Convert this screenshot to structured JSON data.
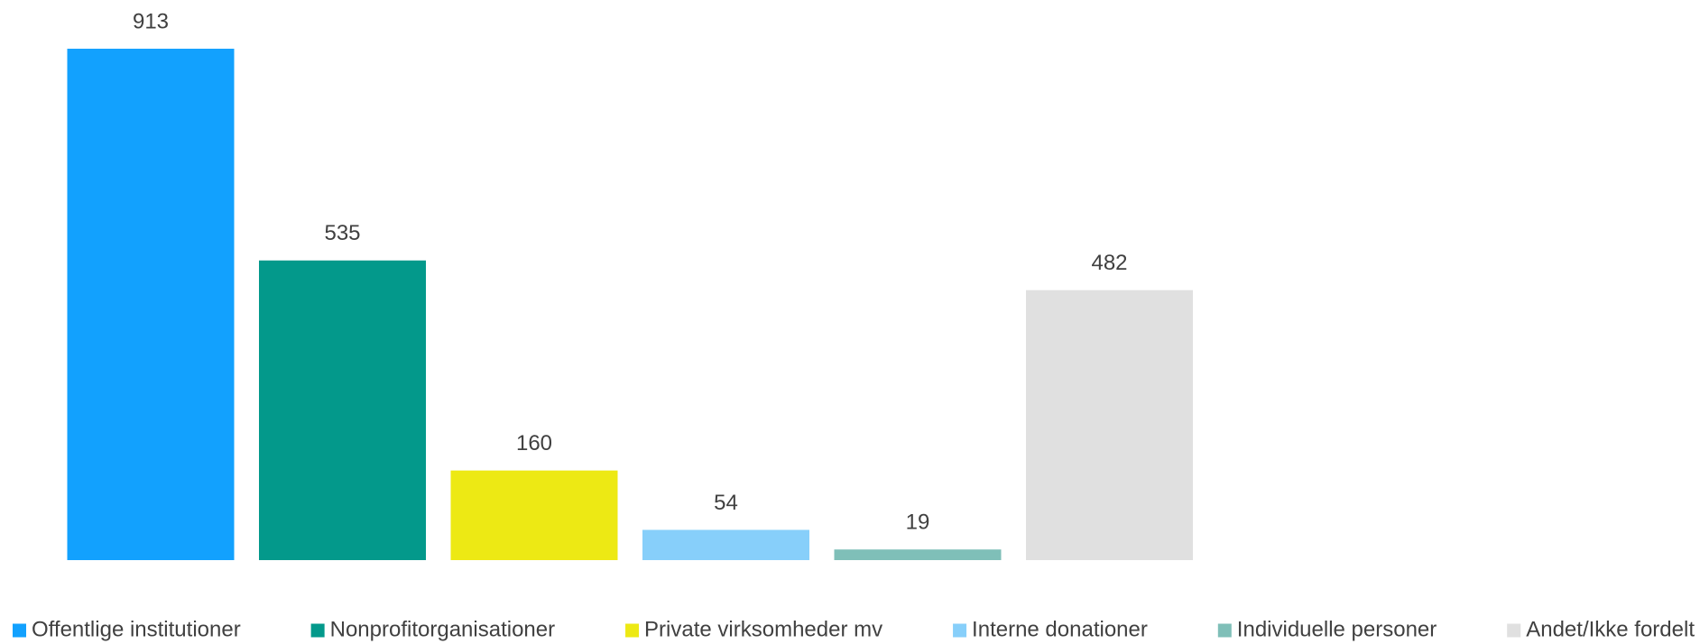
{
  "chart_data": {
    "type": "bar",
    "categories": [
      "Offentlige institutioner",
      "Nonprofitorganisationer",
      "Private virksomheder mv",
      "Interne donationer",
      "Individuelle personer",
      "Andet/Ikke fordelt"
    ],
    "values": [
      913,
      535,
      160,
      54,
      19,
      482
    ],
    "colors": [
      "#12a1fe",
      "#03998b",
      "#ede914",
      "#87cffa",
      "#7fbfb8",
      "#e0e0e0"
    ],
    "legend": "bottom"
  }
}
